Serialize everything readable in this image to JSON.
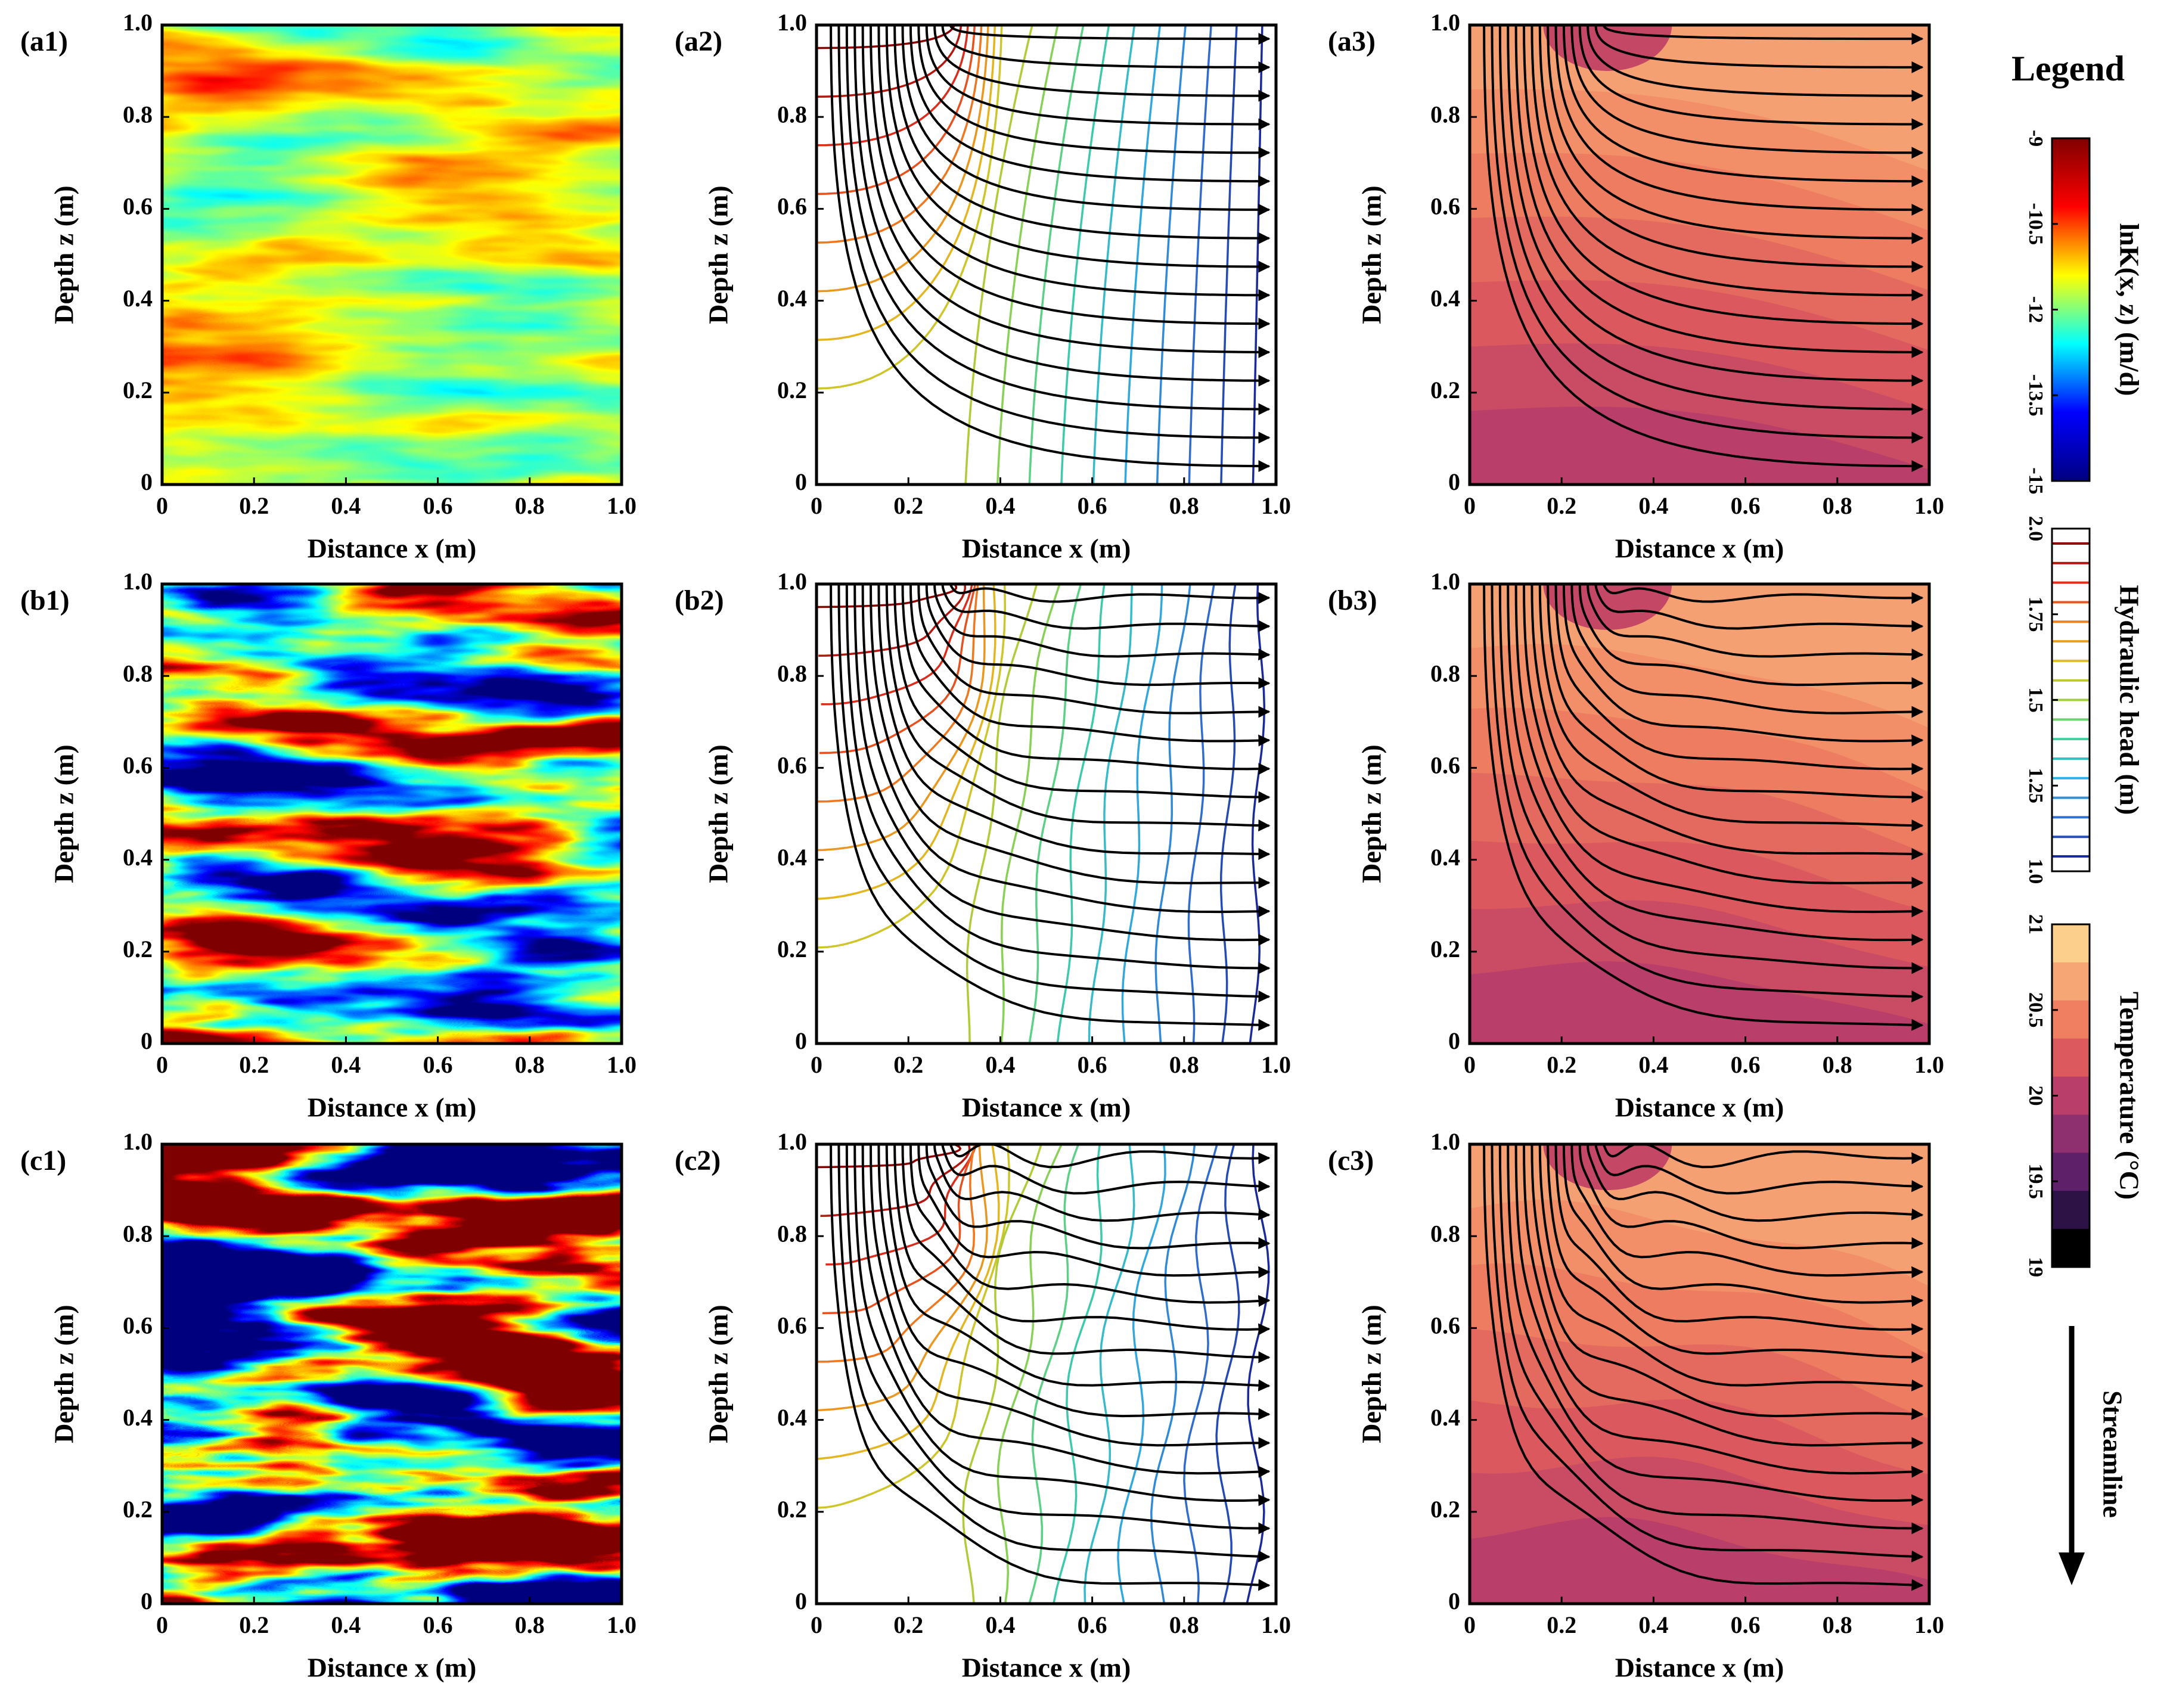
{
  "chart_data": [
    {
      "type": "heatmap",
      "panel_label": "(a1)",
      "x_label": "Distance x (m)",
      "y_label": "Depth z (m)",
      "xlim": [
        0,
        1
      ],
      "ylim": [
        0,
        1
      ],
      "xticks": [
        0,
        0.2,
        0.4,
        0.6,
        0.8,
        {
          "value": 1,
          "label": "1.0"
        }
      ],
      "yticks": [
        0,
        0.2,
        0.4,
        0.6,
        0.8,
        {
          "value": 1,
          "label": "1.0"
        }
      ]
    },
    {
      "type": "contour",
      "panel_label": "(a2)",
      "x_label": "Distance x (m)",
      "y_label": "Depth z (m)",
      "xlim": [
        0,
        1
      ],
      "ylim": [
        0,
        1
      ],
      "xticks": [
        0,
        0.2,
        0.4,
        0.6,
        0.8,
        {
          "value": 1,
          "label": "1.0"
        }
      ],
      "yticks": [
        0,
        0.2,
        0.4,
        0.6,
        0.8,
        {
          "value": 1,
          "label": "1.0"
        }
      ]
    },
    {
      "type": "filled_contour",
      "panel_label": "(a3)",
      "x_label": "Distance x (m)",
      "y_label": "Depth z (m)",
      "xlim": [
        0,
        1
      ],
      "ylim": [
        0,
        1
      ],
      "xticks": [
        0,
        0.2,
        0.4,
        0.6,
        0.8,
        {
          "value": 1,
          "label": "1.0"
        }
      ],
      "yticks": [
        0,
        0.2,
        0.4,
        0.6,
        0.8,
        {
          "value": 1,
          "label": "1.0"
        }
      ]
    },
    {
      "type": "heatmap",
      "panel_label": "(b1)",
      "x_label": "Distance x (m)",
      "y_label": "Depth z (m)",
      "xlim": [
        0,
        1
      ],
      "ylim": [
        0,
        1
      ],
      "xticks": [
        0,
        0.2,
        0.4,
        0.6,
        0.8,
        {
          "value": 1,
          "label": "1.0"
        }
      ],
      "yticks": [
        0,
        0.2,
        0.4,
        0.6,
        0.8,
        {
          "value": 1,
          "label": "1.0"
        }
      ]
    },
    {
      "type": "contour",
      "panel_label": "(b2)",
      "x_label": "Distance x (m)",
      "y_label": "Depth z (m)",
      "xlim": [
        0,
        1
      ],
      "ylim": [
        0,
        1
      ],
      "xticks": [
        0,
        0.2,
        0.4,
        0.6,
        0.8,
        {
          "value": 1,
          "label": "1.0"
        }
      ],
      "yticks": [
        0,
        0.2,
        0.4,
        0.6,
        0.8,
        {
          "value": 1,
          "label": "1.0"
        }
      ]
    },
    {
      "type": "filled_contour",
      "panel_label": "(b3)",
      "x_label": "Distance x (m)",
      "y_label": "Depth z (m)",
      "xlim": [
        0,
        1
      ],
      "ylim": [
        0,
        1
      ],
      "xticks": [
        0,
        0.2,
        0.4,
        0.6,
        0.8,
        {
          "value": 1,
          "label": "1.0"
        }
      ],
      "yticks": [
        0,
        0.2,
        0.4,
        0.6,
        0.8,
        {
          "value": 1,
          "label": "1.0"
        }
      ]
    },
    {
      "type": "heatmap",
      "panel_label": "(c1)",
      "x_label": "Distance x (m)",
      "y_label": "Depth z (m)",
      "xlim": [
        0,
        1
      ],
      "ylim": [
        0,
        1
      ],
      "xticks": [
        0,
        0.2,
        0.4,
        0.6,
        0.8,
        {
          "value": 1,
          "label": "1.0"
        }
      ],
      "yticks": [
        0,
        0.2,
        0.4,
        0.6,
        0.8,
        {
          "value": 1,
          "label": "1.0"
        }
      ]
    },
    {
      "type": "contour",
      "panel_label": "(c2)",
      "x_label": "Distance x (m)",
      "y_label": "Depth z (m)",
      "xlim": [
        0,
        1
      ],
      "ylim": [
        0,
        1
      ],
      "xticks": [
        0,
        0.2,
        0.4,
        0.6,
        0.8,
        {
          "value": 1,
          "label": "1.0"
        }
      ],
      "yticks": [
        0,
        0.2,
        0.4,
        0.6,
        0.8,
        {
          "value": 1,
          "label": "1.0"
        }
      ]
    },
    {
      "type": "filled_contour",
      "panel_label": "(c3)",
      "x_label": "Distance x (m)",
      "y_label": "Depth z (m)",
      "xlim": [
        0,
        1
      ],
      "ylim": [
        0,
        1
      ],
      "xticks": [
        0,
        0.2,
        0.4,
        0.6,
        0.8,
        {
          "value": 1,
          "label": "1.0"
        }
      ],
      "yticks": [
        0,
        0.2,
        0.4,
        0.6,
        0.8,
        {
          "value": 1,
          "label": "1.0"
        }
      ]
    }
  ],
  "legend": {
    "title": "Legend",
    "colorbars": [
      {
        "label": "lnK(x, z) (m/d)",
        "clim": [
          -15,
          -9
        ],
        "ticks": [
          -9,
          -10.5,
          -12,
          -13.5,
          -15
        ],
        "colors": [
          "#800000",
          "#ff0000",
          "#ffff00",
          "#00ffff",
          "#0000ff",
          "#000080"
        ]
      },
      {
        "label": "Hydraulic head (m)",
        "clim": [
          1,
          2
        ],
        "ticks": [
          {
            "value": 2,
            "label": "2.0"
          },
          1.75,
          1.5,
          1.25,
          {
            "value": 1,
            "label": "1.0"
          }
        ],
        "colors": [
          "#8b0000",
          "#e03020",
          "#f08020",
          "#e0c020",
          "#a0d040",
          "#40d0a0",
          "#30b0e0",
          "#3070d0",
          "#1a2a9a"
        ]
      },
      {
        "label": "Temperature (°C)",
        "clim": [
          19,
          21
        ],
        "ticks": [
          21,
          20.5,
          20,
          19.5,
          19
        ],
        "colors": [
          "#fcd08c",
          "#f6a574",
          "#ef7f60",
          "#dc5a5e",
          "#b93f6a",
          "#8e2f70",
          "#5e2068",
          "#2c1245",
          "#000000"
        ]
      }
    ],
    "streamline_label": "Streamline"
  }
}
